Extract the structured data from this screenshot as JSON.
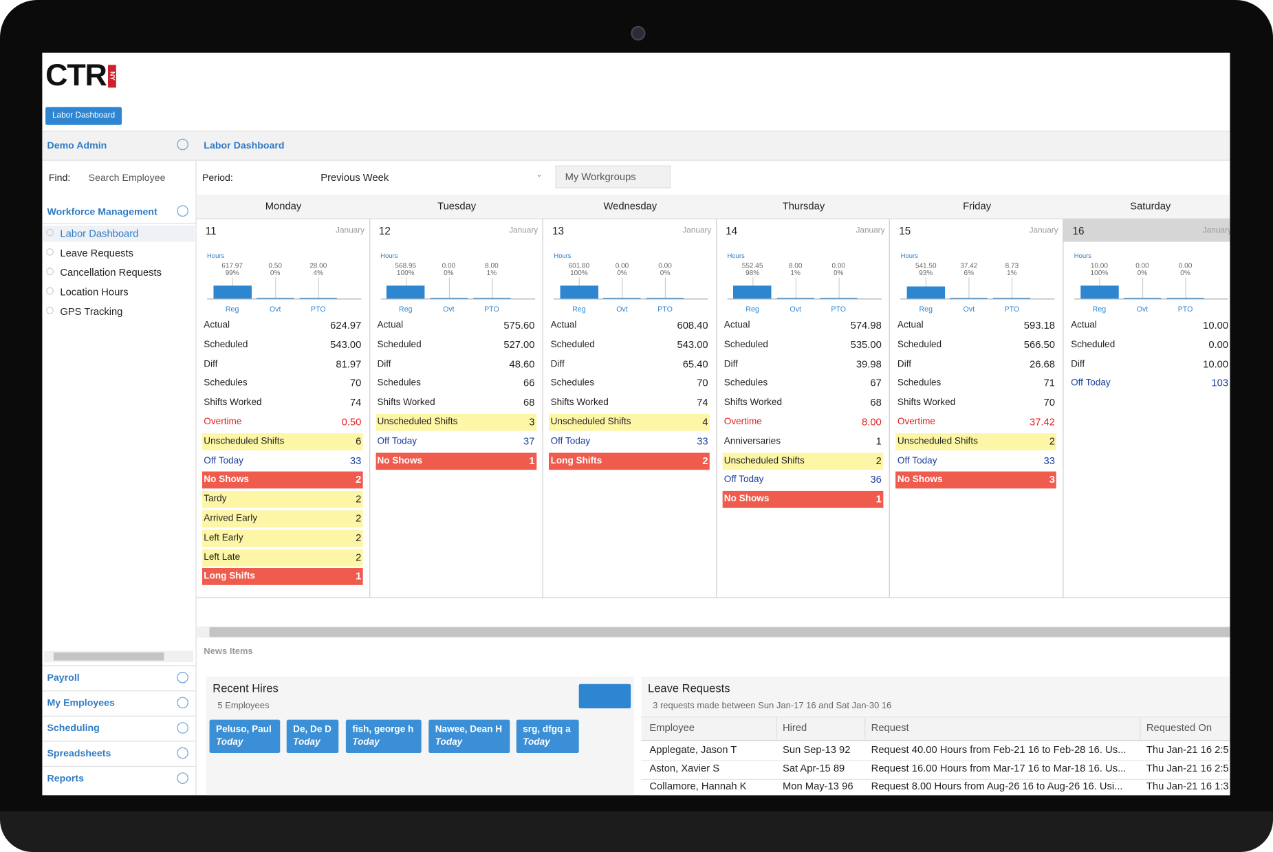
{
  "logo": "CTR",
  "logo_badge": "NY",
  "top_button": "Labor Dashboard",
  "sidebar": {
    "user": "Demo Admin",
    "find_label": "Find:",
    "find_placeholder": "Search Employee",
    "section": "Workforce Management",
    "items": [
      "Labor Dashboard",
      "Leave Requests",
      "Cancellation Requests",
      "Location Hours",
      "GPS Tracking"
    ],
    "groups": [
      "Payroll",
      "My Employees",
      "Scheduling",
      "Spreadsheets",
      "Reports"
    ]
  },
  "breadcrumb": "Labor Dashboard",
  "period_label": "Period:",
  "period": "Previous Week",
  "workgroups": "My Workgroups",
  "days": [
    {
      "weekday": "Monday",
      "date": "11",
      "month": "January",
      "hours_label": "Hours",
      "bars": [
        {
          "label": "Reg",
          "value": "617.97",
          "pct": "99%"
        },
        {
          "label": "Ovt",
          "value": "0.50",
          "pct": "0%"
        },
        {
          "label": "PTO",
          "value": "28.00",
          "pct": "4%"
        }
      ],
      "rows": [
        {
          "label": "Actual",
          "value": "624.97",
          "style": "plain"
        },
        {
          "label": "Scheduled",
          "value": "543.00",
          "style": "plain"
        },
        {
          "label": "Diff",
          "value": "81.97",
          "style": "plain"
        },
        {
          "label": "Schedules",
          "value": "70",
          "style": "plain"
        },
        {
          "label": "Shifts Worked",
          "value": "74",
          "style": "plain"
        },
        {
          "label": "Overtime",
          "value": "0.50",
          "style": "red"
        },
        {
          "label": "Unscheduled Shifts",
          "value": "6",
          "style": "yellow"
        },
        {
          "label": "Off Today",
          "value": "33",
          "style": "blue"
        },
        {
          "label": "No Shows",
          "value": "2",
          "style": "alert"
        },
        {
          "label": "Tardy",
          "value": "2",
          "style": "yellow"
        },
        {
          "label": "Arrived Early",
          "value": "2",
          "style": "yellow"
        },
        {
          "label": "Left Early",
          "value": "2",
          "style": "yellow"
        },
        {
          "label": "Left Late",
          "value": "2",
          "style": "yellow"
        },
        {
          "label": "Long Shifts",
          "value": "1",
          "style": "alert"
        }
      ]
    },
    {
      "weekday": "Tuesday",
      "date": "12",
      "month": "January",
      "hours_label": "Hours",
      "bars": [
        {
          "label": "Reg",
          "value": "568.95",
          "pct": "100%"
        },
        {
          "label": "Ovt",
          "value": "0.00",
          "pct": "0%"
        },
        {
          "label": "PTO",
          "value": "8.00",
          "pct": "1%"
        }
      ],
      "rows": [
        {
          "label": "Actual",
          "value": "575.60",
          "style": "plain"
        },
        {
          "label": "Scheduled",
          "value": "527.00",
          "style": "plain"
        },
        {
          "label": "Diff",
          "value": "48.60",
          "style": "plain"
        },
        {
          "label": "Schedules",
          "value": "66",
          "style": "plain"
        },
        {
          "label": "Shifts Worked",
          "value": "68",
          "style": "plain"
        },
        {
          "label": "Unscheduled Shifts",
          "value": "3",
          "style": "yellow"
        },
        {
          "label": "Off Today",
          "value": "37",
          "style": "blue"
        },
        {
          "label": "No Shows",
          "value": "1",
          "style": "alert"
        }
      ]
    },
    {
      "weekday": "Wednesday",
      "date": "13",
      "month": "January",
      "hours_label": "Hours",
      "bars": [
        {
          "label": "Reg",
          "value": "601.80",
          "pct": "100%"
        },
        {
          "label": "Ovt",
          "value": "0.00",
          "pct": "0%"
        },
        {
          "label": "PTO",
          "value": "0.00",
          "pct": "0%"
        }
      ],
      "rows": [
        {
          "label": "Actual",
          "value": "608.40",
          "style": "plain"
        },
        {
          "label": "Scheduled",
          "value": "543.00",
          "style": "plain"
        },
        {
          "label": "Diff",
          "value": "65.40",
          "style": "plain"
        },
        {
          "label": "Schedules",
          "value": "70",
          "style": "plain"
        },
        {
          "label": "Shifts Worked",
          "value": "74",
          "style": "plain"
        },
        {
          "label": "Unscheduled Shifts",
          "value": "4",
          "style": "yellow"
        },
        {
          "label": "Off Today",
          "value": "33",
          "style": "blue"
        },
        {
          "label": "Long Shifts",
          "value": "2",
          "style": "alert"
        }
      ]
    },
    {
      "weekday": "Thursday",
      "date": "14",
      "month": "January",
      "hours_label": "Hours",
      "bars": [
        {
          "label": "Reg",
          "value": "552.45",
          "pct": "98%"
        },
        {
          "label": "Ovt",
          "value": "8.00",
          "pct": "1%"
        },
        {
          "label": "PTO",
          "value": "0.00",
          "pct": "0%"
        }
      ],
      "rows": [
        {
          "label": "Actual",
          "value": "574.98",
          "style": "plain"
        },
        {
          "label": "Scheduled",
          "value": "535.00",
          "style": "plain"
        },
        {
          "label": "Diff",
          "value": "39.98",
          "style": "plain"
        },
        {
          "label": "Schedules",
          "value": "67",
          "style": "plain"
        },
        {
          "label": "Shifts Worked",
          "value": "68",
          "style": "plain"
        },
        {
          "label": "Overtime",
          "value": "8.00",
          "style": "red"
        },
        {
          "label": "Anniversaries",
          "value": "1",
          "style": "plain"
        },
        {
          "label": "Unscheduled Shifts",
          "value": "2",
          "style": "yellow"
        },
        {
          "label": "Off Today",
          "value": "36",
          "style": "blue"
        },
        {
          "label": "No Shows",
          "value": "1",
          "style": "alert"
        }
      ]
    },
    {
      "weekday": "Friday",
      "date": "15",
      "month": "January",
      "hours_label": "Hours",
      "bars": [
        {
          "label": "Reg",
          "value": "541.50",
          "pct": "93%"
        },
        {
          "label": "Ovt",
          "value": "37.42",
          "pct": "6%"
        },
        {
          "label": "PTO",
          "value": "8.73",
          "pct": "1%"
        }
      ],
      "rows": [
        {
          "label": "Actual",
          "value": "593.18",
          "style": "plain"
        },
        {
          "label": "Scheduled",
          "value": "566.50",
          "style": "plain"
        },
        {
          "label": "Diff",
          "value": "26.68",
          "style": "plain"
        },
        {
          "label": "Schedules",
          "value": "71",
          "style": "plain"
        },
        {
          "label": "Shifts Worked",
          "value": "70",
          "style": "plain"
        },
        {
          "label": "Overtime",
          "value": "37.42",
          "style": "red"
        },
        {
          "label": "Unscheduled Shifts",
          "value": "2",
          "style": "yellow"
        },
        {
          "label": "Off Today",
          "value": "33",
          "style": "blue"
        },
        {
          "label": "No Shows",
          "value": "3",
          "style": "alert"
        }
      ]
    },
    {
      "weekday": "Saturday",
      "date": "16",
      "month": "January",
      "hours_label": "Hours",
      "bars": [
        {
          "label": "Reg",
          "value": "10.00",
          "pct": "100%"
        },
        {
          "label": "Ovt",
          "value": "0.00",
          "pct": "0%"
        },
        {
          "label": "PTO",
          "value": "0.00",
          "pct": "0%"
        }
      ],
      "rows": [
        {
          "label": "Actual",
          "value": "10.00",
          "style": "plain"
        },
        {
          "label": "Scheduled",
          "value": "0.00",
          "style": "plain"
        },
        {
          "label": "Diff",
          "value": "10.00",
          "style": "plain"
        },
        {
          "label": "Off Today",
          "value": "103",
          "style": "blue"
        }
      ]
    }
  ],
  "news_label": "News Items",
  "recent_hires": {
    "title": "Recent Hires",
    "count": "5 Employees",
    "hires": [
      {
        "name": "Peluso, Paul",
        "when": "Today"
      },
      {
        "name": "De, De D",
        "when": "Today"
      },
      {
        "name": "fish, george h",
        "when": "Today"
      },
      {
        "name": "Nawee, Dean H",
        "when": "Today"
      },
      {
        "name": "srg, dfgq a",
        "when": "Today"
      }
    ]
  },
  "leave_requests": {
    "title": "Leave Requests",
    "subtitle": "3 requests made between Sun Jan-17 16 and Sat Jan-30 16",
    "columns": [
      "Employee",
      "Hired",
      "Request",
      "Requested On"
    ],
    "rows": [
      [
        "Applegate, Jason T",
        "Sun Sep-13 92",
        "Request 40.00 Hours from Feb-21 16 to Feb-28 16. Us...",
        "Thu Jan-21 16 2:5"
      ],
      [
        "Aston, Xavier S",
        "Sat Apr-15 89",
        "Request 16.00 Hours from Mar-17 16 to Mar-18 16. Us...",
        "Thu Jan-21 16 2:5"
      ],
      [
        "Collamore, Hannah K",
        "Mon May-13 96",
        "Request 8.00 Hours from Aug-26 16 to Aug-26 16. Usi...",
        "Thu Jan-21 16 1:3"
      ]
    ]
  }
}
